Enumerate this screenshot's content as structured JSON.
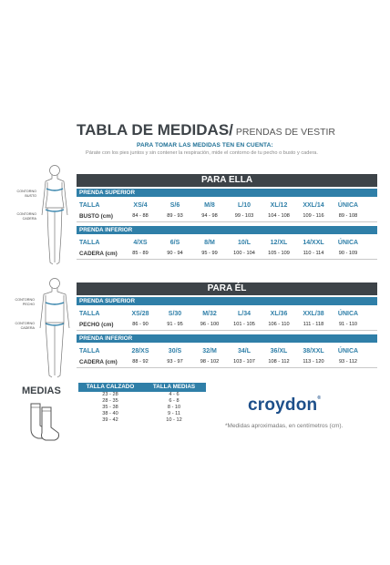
{
  "title": "TABLA DE MEDIDAS/",
  "subtitle": "PRENDAS DE VESTIR",
  "instructions_title": "PARA TOMAR LAS MEDIDAS TEN EN CUENTA:",
  "instructions_text": "Párate con los pies juntos y sin contener la respiración, mide el contorno de tu pecho o busto y cadera.",
  "ella": {
    "banner": "PARA ELLA",
    "notes": [
      "CONTORNO\nBUSTO",
      "CONTORNO\nCADERA"
    ],
    "superior": {
      "section": "PRENDA SUPERIOR",
      "label": "TALLA",
      "sizes": [
        "XS/4",
        "S/6",
        "M/8",
        "L/10",
        "XL/12",
        "XXL/14",
        "ÚNICA"
      ],
      "measure": "BUSTO (cm)",
      "values": [
        "84 - 88",
        "89 - 93",
        "94 - 98",
        "99 - 103",
        "104 - 108",
        "109 - 116",
        "89 - 108"
      ]
    },
    "inferior": {
      "section": "PRENDA INFERIOR",
      "label": "TALLA",
      "sizes": [
        "4/XS",
        "6/S",
        "8/M",
        "10/L",
        "12/XL",
        "14/XXL",
        "ÚNICA"
      ],
      "measure": "CADERA (cm)",
      "values": [
        "85 - 89",
        "90 - 94",
        "95 - 99",
        "100 - 104",
        "105 - 109",
        "110 - 114",
        "90 - 109"
      ]
    }
  },
  "el": {
    "banner": "PARA ÉL",
    "notes": [
      "CONTORNO\nPECHO",
      "CONTORNO\nCADERA"
    ],
    "superior": {
      "section": "PRENDA SUPERIOR",
      "label": "TALLA",
      "sizes": [
        "XS/28",
        "S/30",
        "M/32",
        "L/34",
        "XL/36",
        "XXL/38",
        "ÚNICA"
      ],
      "measure": "PECHO (cm)",
      "values": [
        "86 - 90",
        "91 - 95",
        "96 - 100",
        "101 - 105",
        "106 - 110",
        "111 - 118",
        "91 - 110"
      ]
    },
    "inferior": {
      "section": "PRENDA INFERIOR",
      "label": "TALLA",
      "sizes": [
        "28/XS",
        "30/S",
        "32/M",
        "34/L",
        "36/XL",
        "38/XXL",
        "ÚNICA"
      ],
      "measure": "CADERA (cm)",
      "values": [
        "88 - 92",
        "93 - 97",
        "98 - 102",
        "103 - 107",
        "108 - 112",
        "113 - 120",
        "93 - 112"
      ]
    }
  },
  "medias": {
    "title": "MEDIAS",
    "headers": [
      "TALLA CALZADO",
      "TALLA MEDIAS"
    ],
    "rows": [
      [
        "23 - 28",
        "4 - 6"
      ],
      [
        "28 - 35",
        "6 - 8"
      ],
      [
        "35 - 38",
        "8 - 10"
      ],
      [
        "38 - 40",
        "9 - 11"
      ],
      [
        "39 - 42",
        "10 - 12"
      ]
    ]
  },
  "brand": "croydon",
  "brand_mark": "®",
  "footnote": "*Medidas aproximadas, en centímetros (cm).",
  "colors": {
    "dark": "#3d4348",
    "blue": "#2f7fa8",
    "brand": "#1d4f8a"
  },
  "icons": [
    "female-body-icon",
    "male-body-icon",
    "sock-icon"
  ]
}
